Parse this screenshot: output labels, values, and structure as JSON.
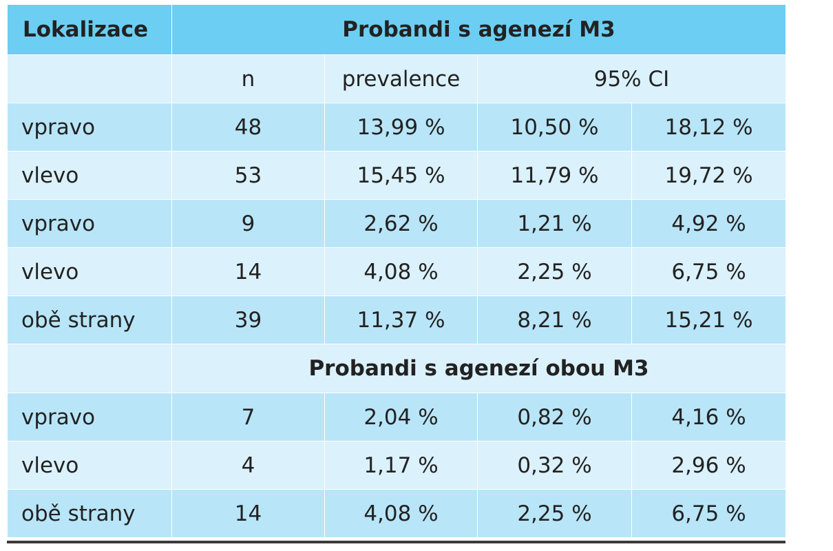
{
  "table": {
    "header": {
      "label": "Lokalizace",
      "group1": "Probandi s agenezí M3"
    },
    "subheader": {
      "n": "n",
      "prevalence": "prevalence",
      "ci": "95% CI"
    },
    "group1_rows": [
      {
        "label": "vpravo",
        "n": "48",
        "prevalence": "13,99 %",
        "ci_low": "10,50 %",
        "ci_high": "18,12 %"
      },
      {
        "label": "vlevo",
        "n": "53",
        "prevalence": "15,45 %",
        "ci_low": "11,79 %",
        "ci_high": "19,72 %"
      },
      {
        "label": "vpravo",
        "n": "9",
        "prevalence": "2,62 %",
        "ci_low": "1,21 %",
        "ci_high": "4,92 %"
      },
      {
        "label": "vlevo",
        "n": "14",
        "prevalence": "4,08 %",
        "ci_low": "2,25 %",
        "ci_high": "6,75 %"
      },
      {
        "label": "obě strany",
        "n": "39",
        "prevalence": "11,37 %",
        "ci_low": "8,21 %",
        "ci_high": "15,21 %"
      }
    ],
    "group2_title": "Probandi s agenezí obou M3",
    "group2_rows": [
      {
        "label": "vpravo",
        "n": "7",
        "prevalence": "2,04 %",
        "ci_low": "0,82 %",
        "ci_high": "4,16 %"
      },
      {
        "label": "vlevo",
        "n": "4",
        "prevalence": "1,17 %",
        "ci_low": "0,32 %",
        "ci_high": "2,96 %"
      },
      {
        "label": "obě strany",
        "n": "14",
        "prevalence": "4,08 %",
        "ci_low": "2,25 %",
        "ci_high": "6,75 %"
      }
    ]
  },
  "colors": {
    "header": "#6ccef2",
    "row_dark": "#b9e5f8",
    "row_light": "#dbf1fc"
  }
}
